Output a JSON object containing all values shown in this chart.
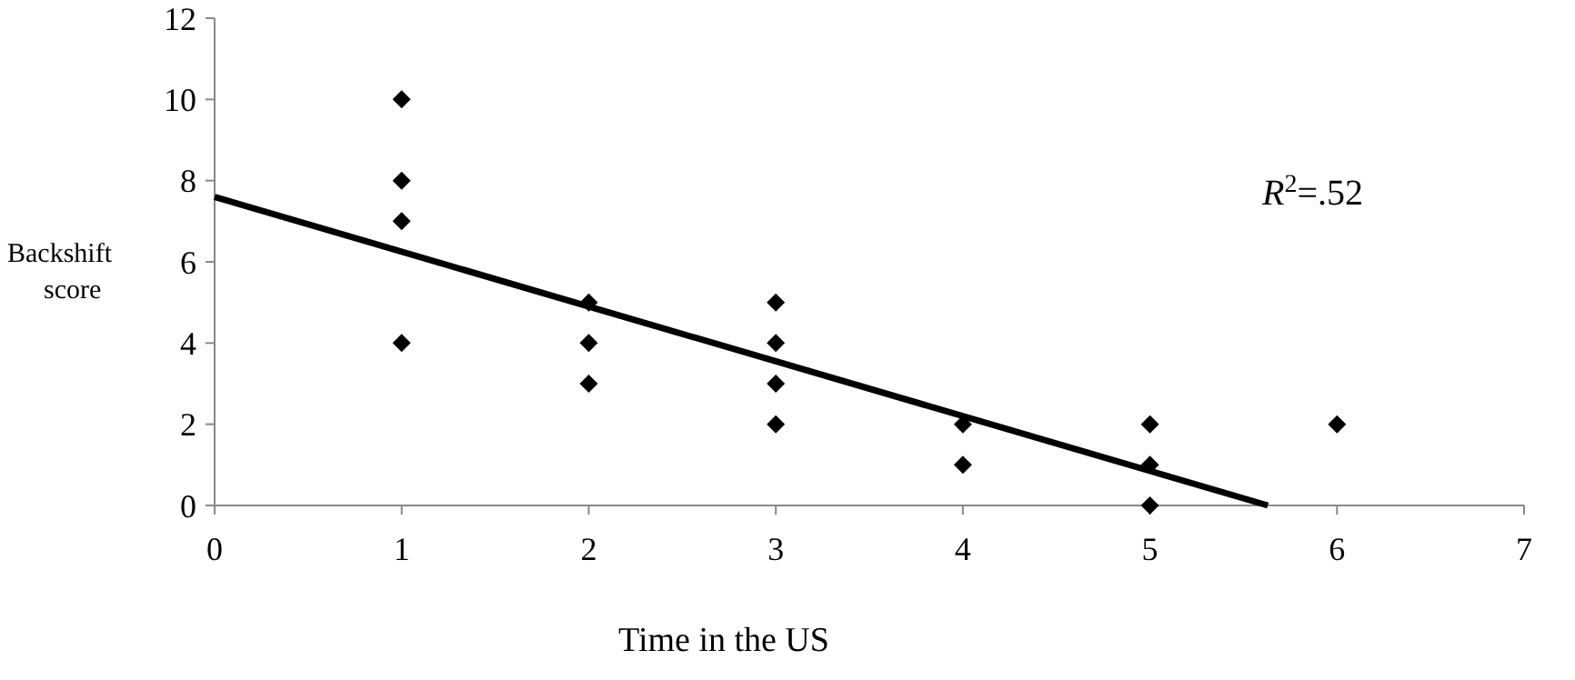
{
  "chart_data": {
    "type": "scatter",
    "xlabel": "Time in the US",
    "ylabel": "Backshift score",
    "annotations": [
      "R$^{2}$=.52"
    ],
    "xlim": [
      0,
      7
    ],
    "xticks": [
      0,
      1,
      2,
      3,
      4,
      5,
      6,
      7
    ],
    "ylim": [
      0,
      12
    ],
    "yticks": [
      0,
      2,
      4,
      6,
      8,
      10,
      12
    ],
    "grid": false,
    "marker": "diamond",
    "series": [
      {
        "color": "#000000",
        "x": [
          1,
          1,
          1,
          1,
          2,
          2,
          2,
          3,
          3,
          3,
          3,
          4,
          4,
          5,
          5,
          5,
          6
        ],
        "values": [
          10,
          8,
          7,
          4,
          5,
          4,
          3,
          5,
          4,
          3,
          2,
          2,
          1,
          2,
          1,
          0,
          2
        ]
      },
      {
        "type": "line",
        "color": "#000000",
        "line_style": "solid",
        "marker": "none",
        "x": [
          0,
          5.63
        ],
        "values": [
          7.6,
          0
        ]
      }
    ]
  }
}
